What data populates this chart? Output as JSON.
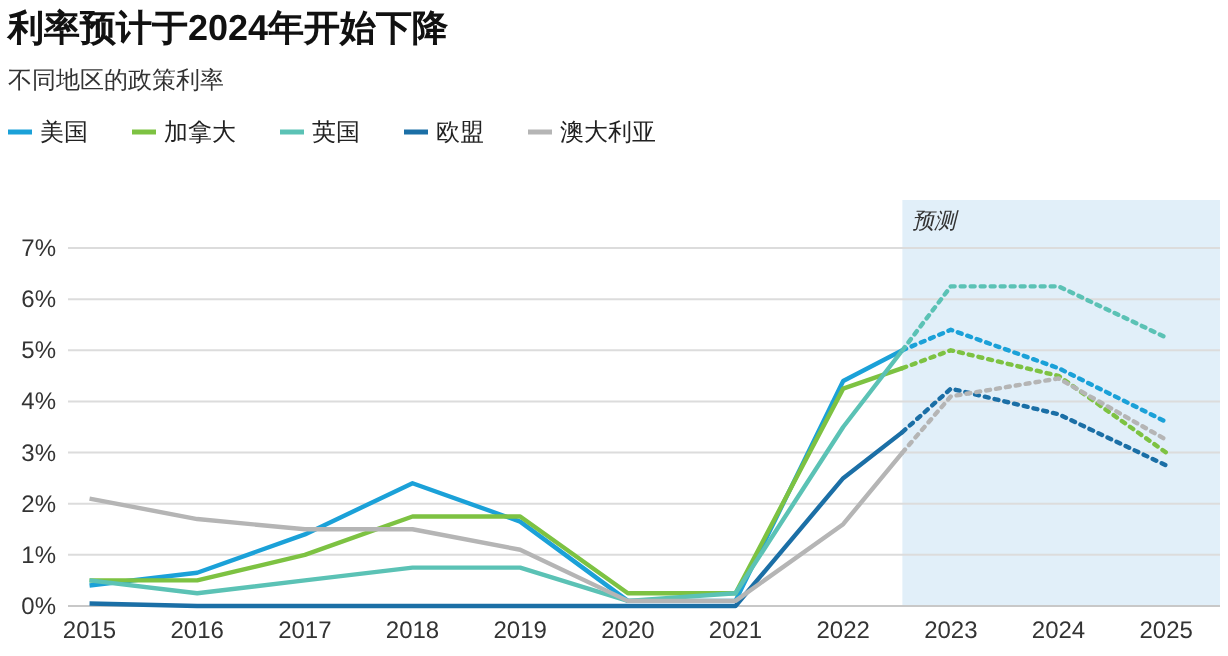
{
  "chart_data": {
    "type": "line",
    "title": "利率预计于2024年开始下降",
    "subtitle": "不同地区的政策利率",
    "xlim": [
      2014.8,
      2025.5
    ],
    "xticks": [
      2015,
      2016,
      2017,
      2018,
      2019,
      2020,
      2021,
      2022,
      2023,
      2024,
      2025
    ],
    "ylim": [
      0,
      7
    ],
    "yticks": [
      {
        "value": 0,
        "label": "0%"
      },
      {
        "value": 1,
        "label": "1%"
      },
      {
        "value": 2,
        "label": "2%"
      },
      {
        "value": 3,
        "label": "3%"
      },
      {
        "value": 4,
        "label": "4%"
      },
      {
        "value": 5,
        "label": "5%"
      },
      {
        "value": 6,
        "label": "6%"
      },
      {
        "value": 7,
        "label": "7%"
      }
    ],
    "grid": "y",
    "legend": "top left",
    "marker": "none",
    "bands": [
      {
        "axis": "x",
        "from": 2022.55,
        "to": 2025.5,
        "label": "预测",
        "color": "#e1eff9"
      }
    ],
    "series": [
      {
        "name": "美国",
        "color": "#1ba1d8",
        "line_style": "solid",
        "x": [
          2015,
          2016,
          2017,
          2018,
          2019,
          2020,
          2021,
          2022,
          2022.55
        ],
        "values": [
          0.4,
          0.65,
          1.4,
          2.4,
          1.65,
          0.1,
          0.1,
          4.4,
          5.0
        ]
      },
      {
        "name": "加拿大",
        "color": "#7dc242",
        "line_style": "solid",
        "x": [
          2015,
          2016,
          2017,
          2018,
          2019,
          2020,
          2021,
          2022,
          2022.55
        ],
        "values": [
          0.5,
          0.5,
          1.0,
          1.75,
          1.75,
          0.25,
          0.25,
          4.25,
          4.65
        ]
      },
      {
        "name": "英国",
        "color": "#5bc2b5",
        "line_style": "solid",
        "x": [
          2015,
          2016,
          2017,
          2018,
          2019,
          2020,
          2021,
          2022,
          2022.55
        ],
        "values": [
          0.5,
          0.25,
          0.5,
          0.75,
          0.75,
          0.1,
          0.25,
          3.5,
          5.0
        ]
      },
      {
        "name": "欧盟",
        "color": "#1b6fa6",
        "line_style": "solid",
        "x": [
          2015,
          2016,
          2017,
          2018,
          2019,
          2020,
          2021,
          2022,
          2022.55
        ],
        "values": [
          0.05,
          0,
          0,
          0,
          0,
          0,
          0,
          2.5,
          3.4
        ]
      },
      {
        "name": "澳大利亚",
        "color": "#b5b5b5",
        "line_style": "solid",
        "x": [
          2015,
          2016,
          2017,
          2018,
          2019,
          2020,
          2021,
          2022,
          2022.55
        ],
        "values": [
          2.1,
          1.7,
          1.5,
          1.5,
          1.1,
          0.1,
          0.1,
          1.6,
          3.0
        ]
      },
      {
        "color": "#1ba1d8",
        "line_style": "dotted",
        "x": [
          2022.55,
          2023,
          2024,
          2025
        ],
        "values": [
          5.0,
          5.4,
          4.65,
          3.6
        ]
      },
      {
        "color": "#7dc242",
        "line_style": "dotted",
        "x": [
          2022.55,
          2023,
          2024,
          2025
        ],
        "values": [
          4.65,
          5.0,
          4.5,
          3.0
        ]
      },
      {
        "color": "#5bc2b5",
        "line_style": "dotted",
        "x": [
          2022.55,
          2023,
          2024,
          2025
        ],
        "values": [
          5.0,
          6.25,
          6.25,
          5.25
        ]
      },
      {
        "color": "#1b6fa6",
        "line_style": "dotted",
        "x": [
          2022.55,
          2023,
          2024,
          2025
        ],
        "values": [
          3.4,
          4.25,
          3.75,
          2.75
        ]
      },
      {
        "color": "#b5b5b5",
        "line_style": "dotted",
        "x": [
          2022.55,
          2023,
          2024,
          2025
        ],
        "values": [
          3.0,
          4.1,
          4.45,
          3.25
        ]
      }
    ]
  }
}
